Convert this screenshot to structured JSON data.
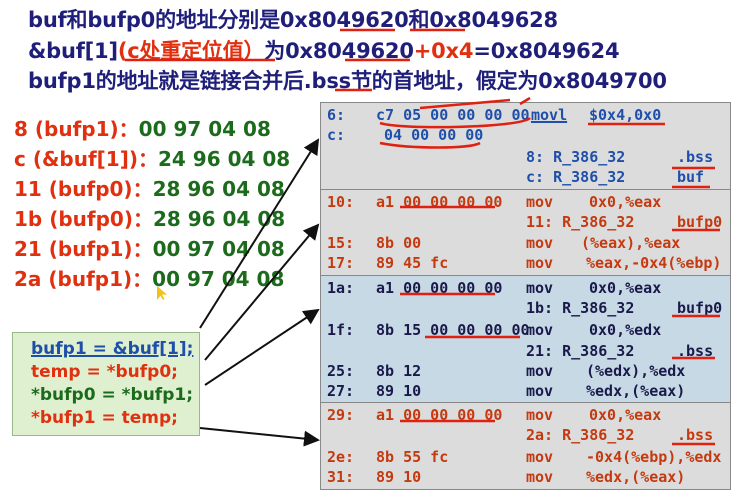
{
  "header": {
    "line1": "buf和bufp0的地址分别是0x8049620和0x8049628",
    "line2_a": "&buf[1]",
    "line2_b": "(c处重定位值）",
    "line2_c": "为0x8049620",
    "line2_d": "+0x4",
    "line2_e": "=0x8049624",
    "line3": "bufp1的地址就是链接合并后.bss节的首地址，假定为0x8049700"
  },
  "relocs": [
    {
      "key": "8 (bufp1)：",
      "val": "00 97 04 08"
    },
    {
      "key": "c (&buf[1])：",
      "val": "24 96 04 08"
    },
    {
      "key": "11 (bufp0)：",
      "val": "28 96 04 08"
    },
    {
      "key": "1b (bufp0)：",
      "val": "28 96 04 08"
    },
    {
      "key": "21 (bufp1)：",
      "val": "00 97 04 08"
    },
    {
      "key": "2a (bufp1)：",
      "val": "00 97 04 08"
    }
  ],
  "code": {
    "l1": "bufp1 = &buf[1];",
    "l2": "temp = *bufp0;",
    "l3": "*bufp0 = *bufp1;",
    "l4": "*bufp1 = temp;"
  },
  "asm": {
    "b1": [
      {
        "addr": "6:",
        "bytes": "c7 05 00 00 00 00",
        "ins": "movl",
        "ops": "$0x4,0x0"
      },
      {
        "addr": "c:",
        "bytes": "04 00 00 00"
      },
      {
        "reloc": "8: R_386_32",
        "sym": ".bss"
      },
      {
        "reloc": "c: R_386_32",
        "sym": "buf"
      }
    ],
    "b2": [
      {
        "addr": "10:",
        "bytes": "a1 00 00 00 00",
        "ins": "mov",
        "ops": "0x0,%eax"
      },
      {
        "reloc": "11: R_386_32",
        "sym": "bufp0"
      },
      {
        "addr": "15:",
        "bytes": "8b 00",
        "ins": "mov",
        "ops": "(%eax),%eax"
      },
      {
        "addr": "17:",
        "bytes": "89 45 fc",
        "ins": "mov",
        "ops": "%eax,-0x4(%ebp)"
      }
    ],
    "b3": [
      {
        "addr": "1a:",
        "bytes": "a1 00 00 00 00",
        "ins": "mov",
        "ops": "0x0,%eax"
      },
      {
        "reloc": "1b: R_386_32",
        "sym": "bufp0"
      },
      {
        "addr": "1f:",
        "bytes": "8b 15 00 00 00 00",
        "ins": "mov",
        "ops": "0x0,%edx"
      },
      {
        "reloc": "21: R_386_32",
        "sym": ".bss"
      },
      {
        "addr": "25:",
        "bytes": "8b 12",
        "ins": "mov",
        "ops": "(%edx),%edx"
      },
      {
        "addr": "27:",
        "bytes": "89 10",
        "ins": "mov",
        "ops": "%edx,(%eax)"
      }
    ],
    "b4": [
      {
        "addr": "29:",
        "bytes": "a1 00 00 00 00",
        "ins": "mov",
        "ops": "0x0,%eax"
      },
      {
        "reloc": "2a: R_386_32",
        "sym": ".bss"
      },
      {
        "addr": "2e:",
        "bytes": "8b 55 fc",
        "ins": "mov",
        "ops": "-0x4(%ebp),%edx"
      },
      {
        "addr": "31:",
        "bytes": "89 10",
        "ins": "mov",
        "ops": "%edx,(%eax)"
      }
    ]
  }
}
